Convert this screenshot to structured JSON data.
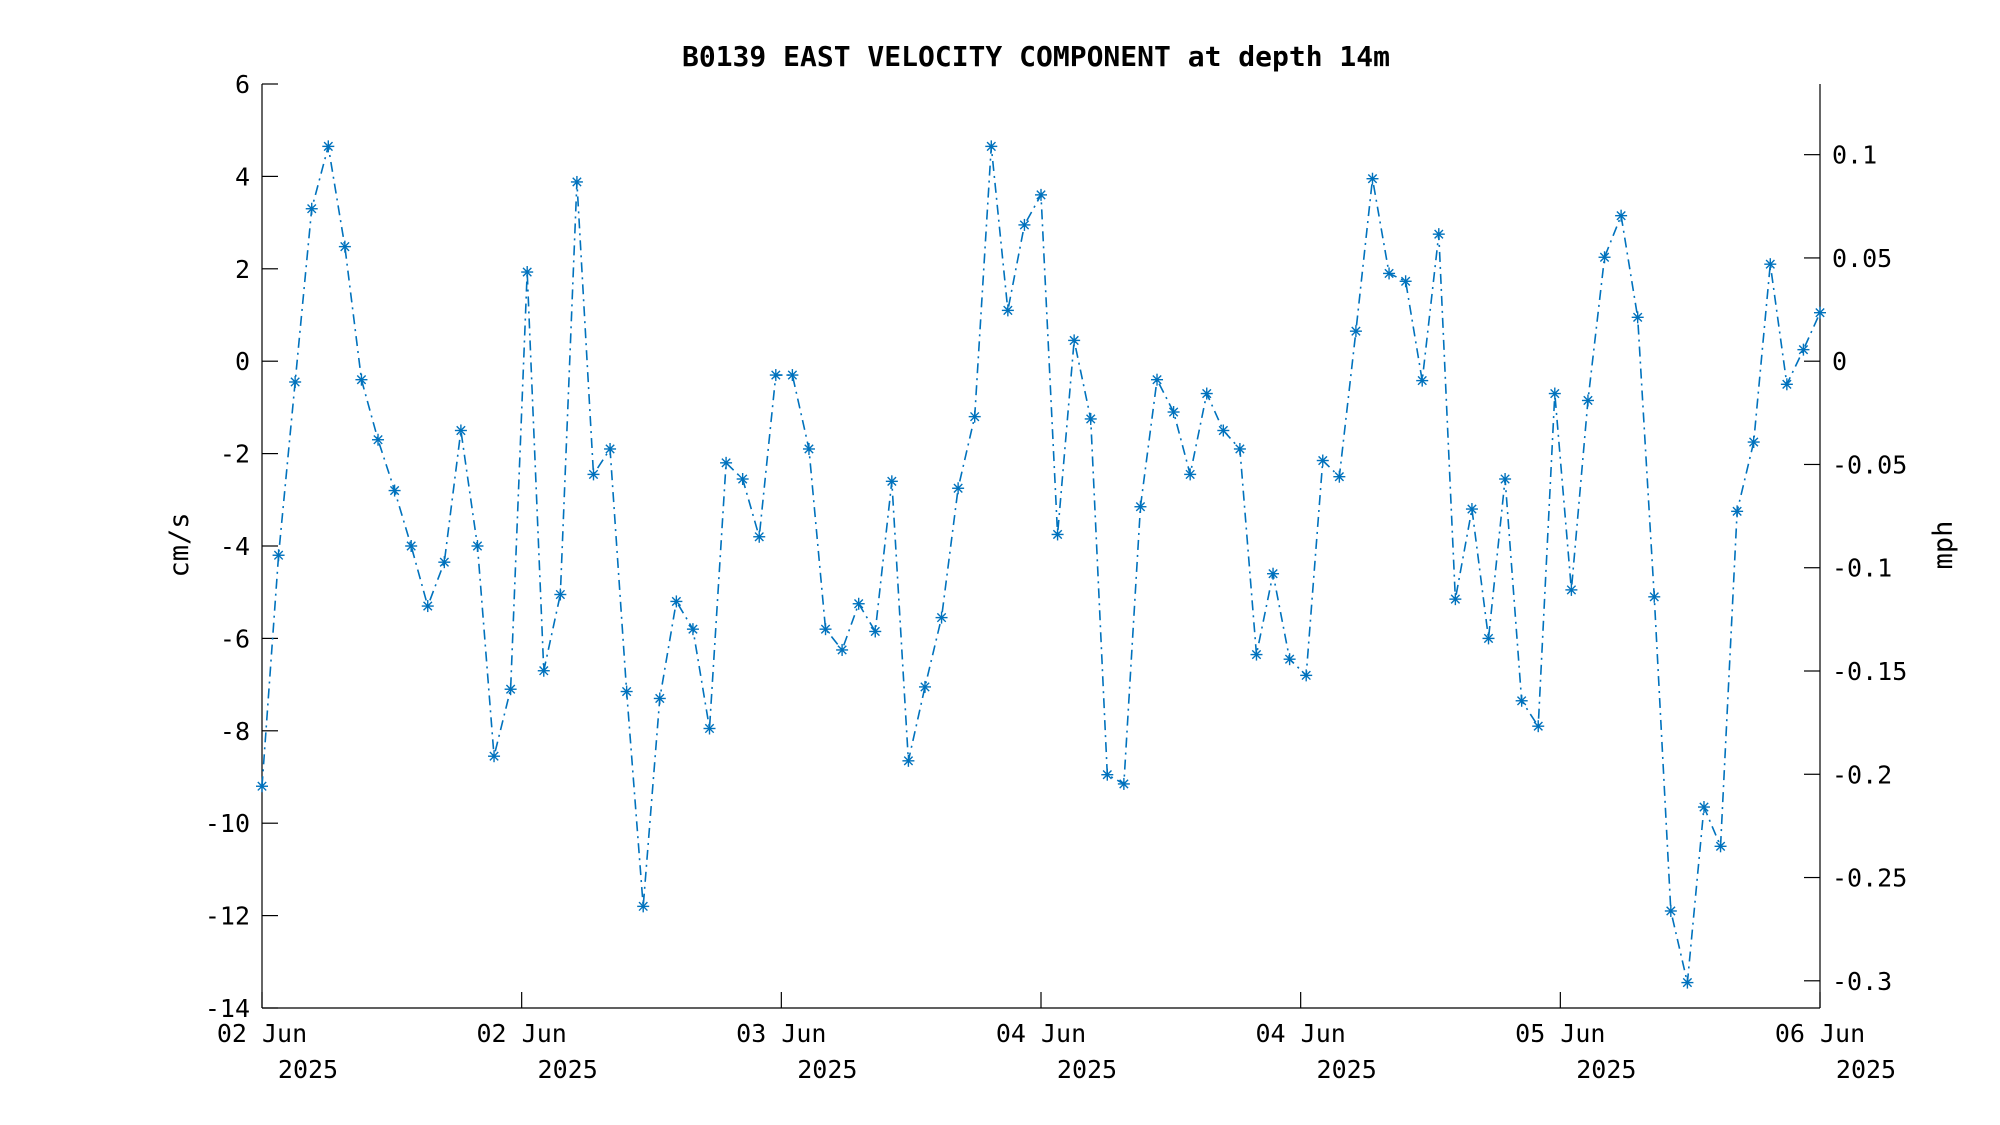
{
  "chart_data": {
    "type": "line",
    "title": "B0139 EAST VELOCITY COMPONENT at depth 14m",
    "ylabel": "cm/s",
    "y2label": "mph",
    "ylim": [
      -14,
      6
    ],
    "yticks": [
      6,
      4,
      2,
      0,
      -2,
      -4,
      -6,
      -8,
      -10,
      -12,
      -14
    ],
    "y2ticks": [
      "0.1",
      "0.05",
      "0",
      "-0.05",
      "-0.1",
      "-0.15",
      "-0.2",
      "-0.25",
      "-0.3"
    ],
    "y2tick_values": [
      0.1,
      0.05,
      0,
      -0.05,
      -0.1,
      -0.15,
      -0.2,
      -0.25,
      -0.3
    ],
    "cms_per_mph": 44.704,
    "x_start": "2025-06-02 00:00",
    "x_end": "2025-06-06 00:00",
    "x_interval_hours": 1,
    "xticks": [
      {
        "line1": "02 Jun",
        "line2": "2025"
      },
      {
        "line1": "02 Jun",
        "line2": "2025"
      },
      {
        "line1": "03 Jun",
        "line2": "2025"
      },
      {
        "line1": "04 Jun",
        "line2": "2025"
      },
      {
        "line1": "04 Jun",
        "line2": "2025"
      },
      {
        "line1": "05 Jun",
        "line2": "2025"
      },
      {
        "line1": "06 Jun",
        "line2": "2025"
      }
    ],
    "grid": false,
    "colors": {
      "series": "#0072BD",
      "axis": "#000000"
    },
    "series": [
      {
        "marker": "asterisk",
        "line_style": "dash-dot",
        "values": [
          -9.2,
          -4.2,
          -0.45,
          3.3,
          4.65,
          2.48,
          -0.4,
          -1.7,
          -2.8,
          -4.0,
          -5.3,
          -4.35,
          -1.5,
          -4.0,
          -8.55,
          -7.1,
          1.93,
          -6.7,
          -5.05,
          3.88,
          -2.45,
          -1.9,
          -7.15,
          -11.8,
          -7.3,
          -5.2,
          -5.8,
          -7.95,
          -2.2,
          -2.55,
          -3.8,
          -0.3,
          -0.3,
          -1.9,
          -5.8,
          -6.25,
          -5.25,
          -5.85,
          -2.6,
          -8.65,
          -7.05,
          -5.55,
          -2.75,
          -1.2,
          4.65,
          1.1,
          2.95,
          3.6,
          -3.75,
          0.45,
          -1.25,
          -8.95,
          -9.15,
          -3.15,
          -0.4,
          -1.1,
          -2.45,
          -0.7,
          -1.5,
          -1.9,
          -6.35,
          -4.6,
          -6.45,
          -6.8,
          -2.15,
          -2.5,
          0.65,
          3.95,
          1.9,
          1.73,
          -0.42,
          2.75,
          -5.15,
          -3.2,
          -6.0,
          -2.55,
          -7.35,
          -7.9,
          -0.7,
          -4.95,
          -0.85,
          2.25,
          3.15,
          0.95,
          -5.1,
          -11.9,
          -13.45,
          -9.65,
          -10.5,
          -3.25,
          -1.75,
          2.1,
          -0.5,
          0.25,
          1.05
        ]
      }
    ]
  }
}
